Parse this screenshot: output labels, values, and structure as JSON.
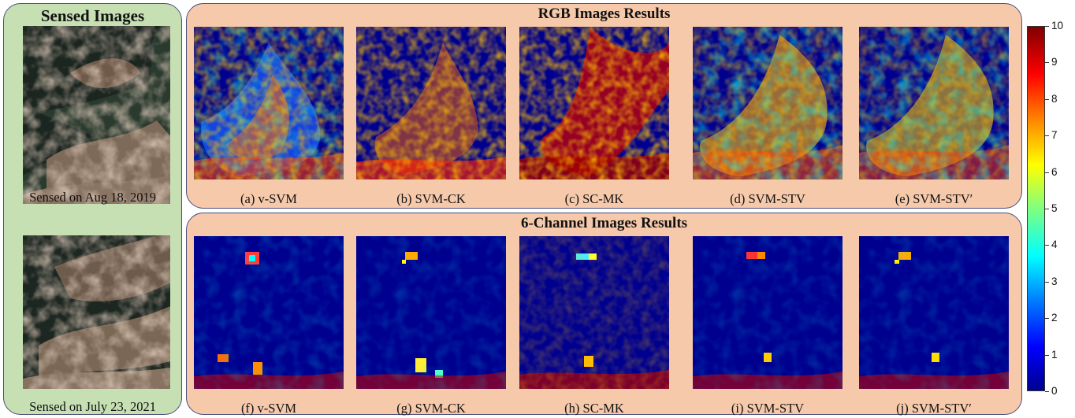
{
  "sensed": {
    "title": "Sensed Images",
    "captions": [
      "Sensed on Aug 18, 2019",
      "Sensed on July 23, 2021"
    ]
  },
  "rgb": {
    "title": "RGB Images Results",
    "captions": [
      "(a) v-SVM",
      "(b) SVM-CK",
      "(c) SC-MK",
      "(d) SVM-STV",
      "(e) SVM-STV′"
    ]
  },
  "six": {
    "title": "6-Channel Images Results",
    "captions": [
      "(f) v-SVM",
      "(g) SVM-CK",
      "(h) SC-MK",
      "(i) SVM-STV",
      "(j) SVM-STV′"
    ]
  },
  "colorbar": {
    "ticks": [
      "0",
      "1",
      "2",
      "3",
      "4",
      "5",
      "6",
      "7",
      "8",
      "9",
      "10"
    ],
    "colormap": "jet",
    "colors": [
      "#00008f",
      "#0000ff",
      "#00ffff",
      "#ffff00",
      "#ff0000",
      "#800000"
    ]
  }
}
